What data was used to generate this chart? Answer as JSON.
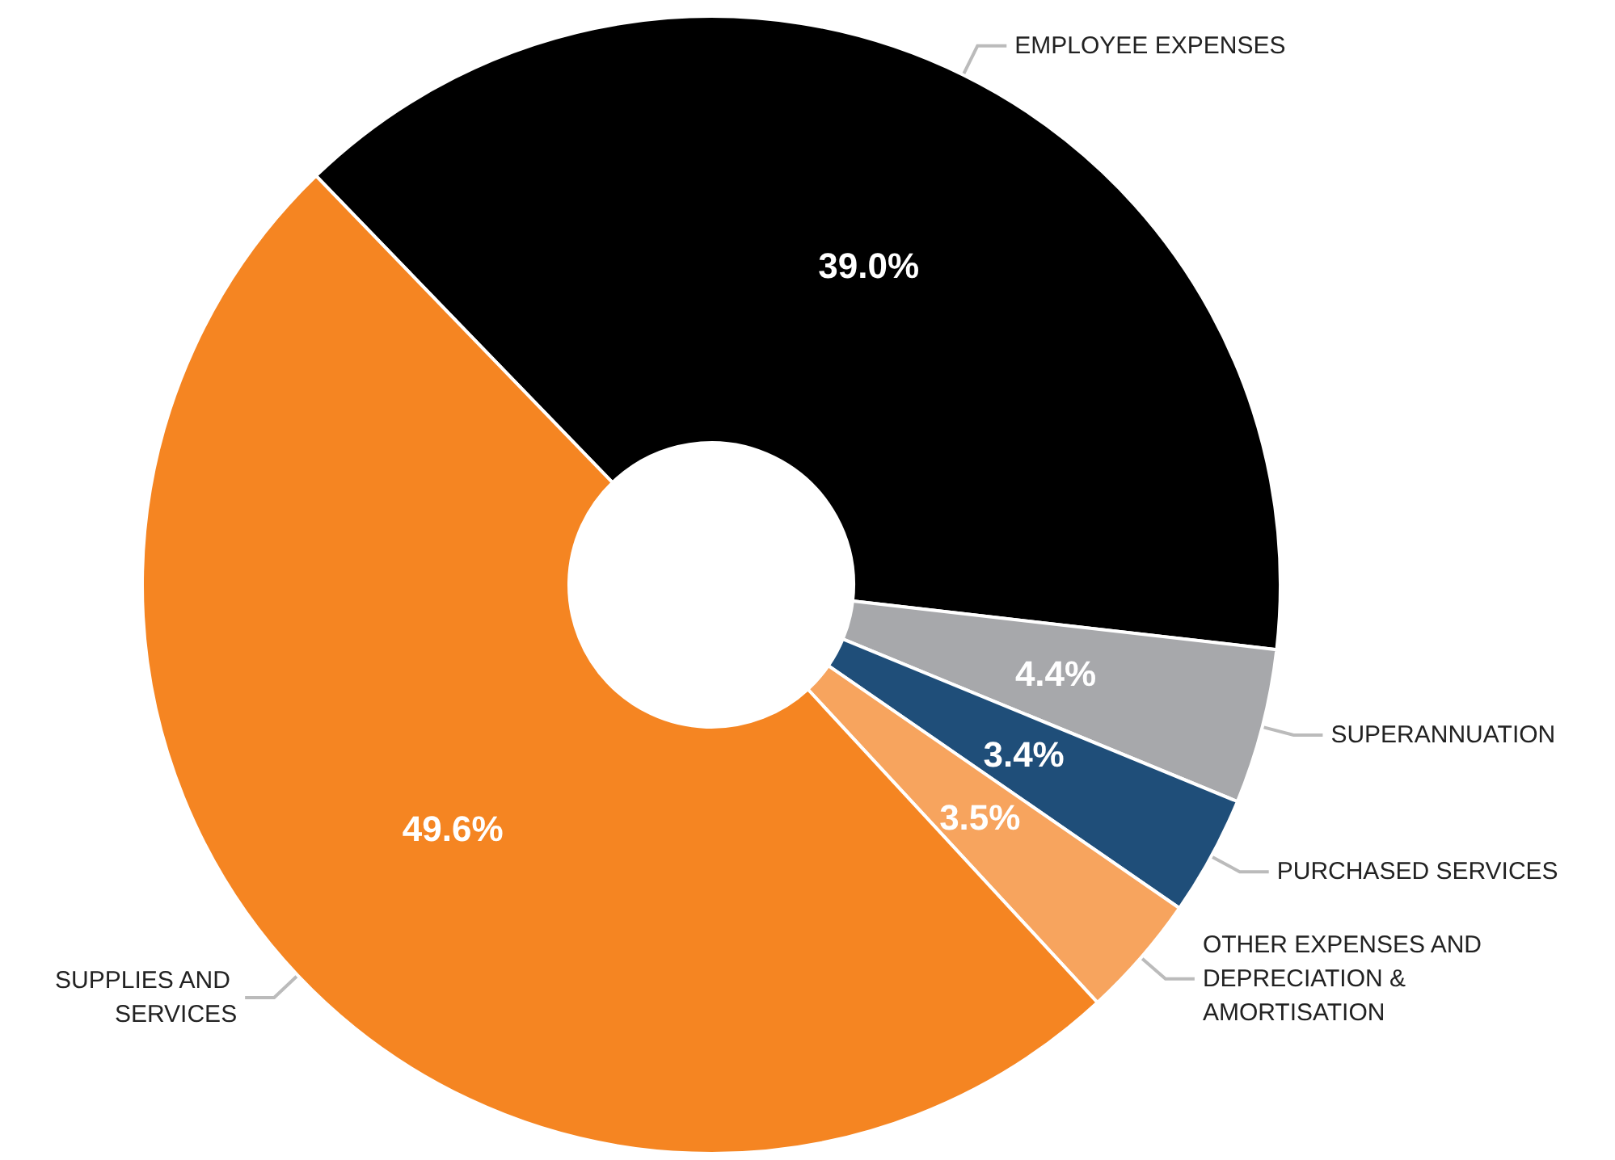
{
  "chart_data": {
    "type": "donut",
    "categories": [
      "EMPLOYEE EXPENSES",
      "SUPERANNUATION",
      "PURCHASED SERVICES",
      "OTHER EXPENSES AND DEPRECIATION & AMORTISATION",
      "SUPPLIES AND SERVICES"
    ],
    "values": [
      39.0,
      4.4,
      3.4,
      3.5,
      49.6
    ],
    "colors": [
      "#000000",
      "#a7a8ab",
      "#1f4e79",
      "#f7a45e",
      "#f58522"
    ],
    "value_labels": [
      "39.0%",
      "4.4%",
      "3.4%",
      "3.5%",
      "49.6%"
    ]
  }
}
